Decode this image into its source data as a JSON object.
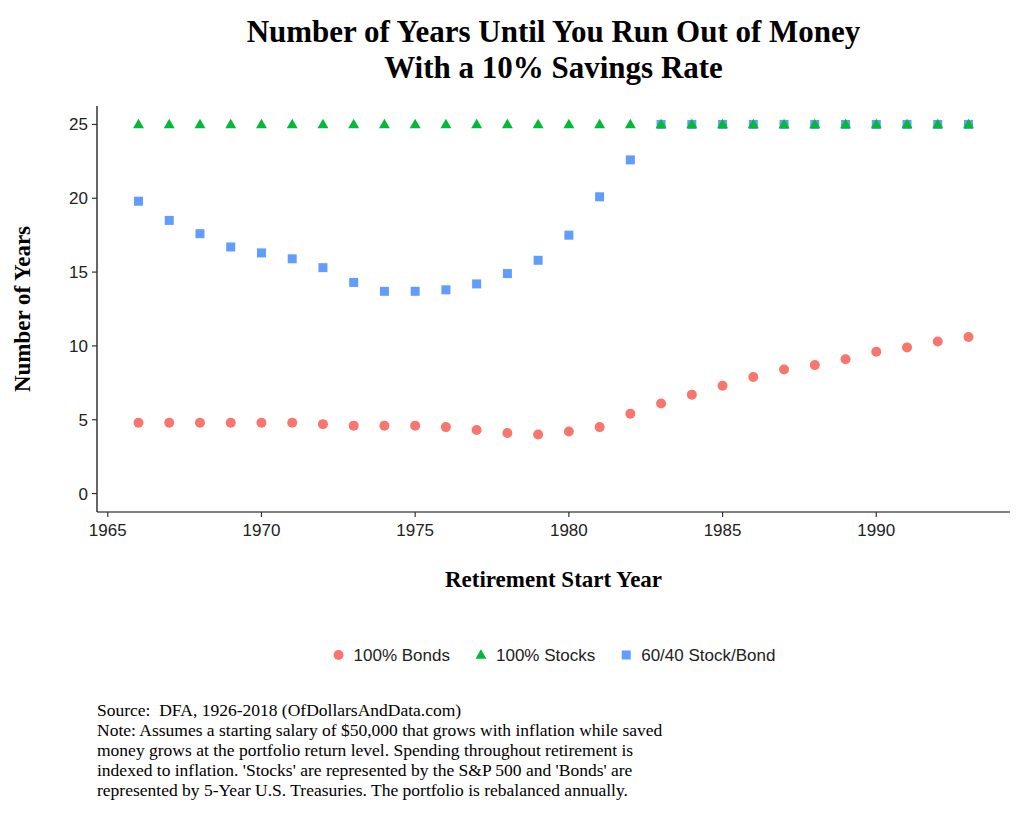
{
  "chart_data": {
    "type": "scatter",
    "title": [
      "Number of Years Until You Run Out of Money",
      "With a 10% Savings Rate"
    ],
    "x_label": "Retirement Start Year",
    "y_label": "Number of Years",
    "x": [
      1966,
      1967,
      1968,
      1969,
      1970,
      1971,
      1972,
      1973,
      1974,
      1975,
      1976,
      1977,
      1978,
      1979,
      1980,
      1981,
      1982,
      1983,
      1984,
      1985,
      1986,
      1987,
      1988,
      1989,
      1990,
      1991,
      1992,
      1993
    ],
    "series": [
      {
        "name": "100% Bonds",
        "color": "#F8766D",
        "marker": "circle",
        "values": [
          4.8,
          4.8,
          4.8,
          4.8,
          4.8,
          4.8,
          4.7,
          4.6,
          4.6,
          4.6,
          4.5,
          4.3,
          4.1,
          4.0,
          4.2,
          4.5,
          5.4,
          6.1,
          6.7,
          7.3,
          7.9,
          8.4,
          8.7,
          9.1,
          9.6,
          9.9,
          10.3,
          10.6
        ]
      },
      {
        "name": "100% Stocks",
        "color": "#00BA38",
        "marker": "triangle",
        "values": [
          25,
          25,
          25,
          25,
          25,
          25,
          25,
          25,
          25,
          25,
          25,
          25,
          25,
          25,
          25,
          25,
          25,
          25,
          25,
          25,
          25,
          25,
          25,
          25,
          25,
          25,
          25,
          25
        ]
      },
      {
        "name": "60/40 Stock/Bond",
        "color": "#619CFF",
        "marker": "square",
        "values": [
          19.8,
          18.5,
          17.6,
          16.7,
          16.3,
          15.9,
          15.3,
          14.3,
          13.7,
          13.7,
          13.8,
          14.2,
          14.9,
          15.8,
          17.5,
          20.1,
          22.6,
          25,
          25,
          25,
          25,
          25,
          25,
          25,
          25,
          25,
          25,
          25
        ]
      }
    ],
    "xlim": [
      1964.65,
      1994.35
    ],
    "xticks": [
      1965,
      1970,
      1975,
      1980,
      1985,
      1990
    ],
    "ylim": [
      -1.25,
      26.25
    ],
    "yticks": [
      0,
      5,
      10,
      15,
      20,
      25
    ],
    "grid": false,
    "legend": "bottom",
    "caption": [
      "Source:  DFA, 1926-2018 (OfDollarsAndData.com)",
      "Note: Assumes a starting salary of $50,000 that grows with inflation while saved",
      "money grows at the portfolio return level. Spending throughout retirement is",
      "indexed to inflation. 'Stocks' are represented by the S&P 500 and 'Bonds' are",
      "represented by 5-Year U.S. Treasuries. The portfolio is rebalanced annually."
    ]
  }
}
